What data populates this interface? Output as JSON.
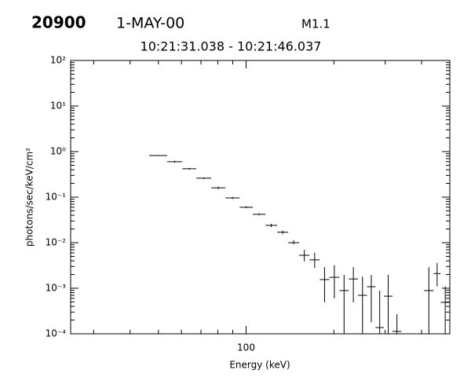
{
  "chart_data": {
    "type": "errorbar",
    "header": {
      "id": "20900",
      "date": "1-MAY-00",
      "class": "M1.1",
      "time_range": "10:21:31.038 - 10:21:46.037"
    },
    "x_label": "Energy (keV)",
    "y_label": "photons/sec/keV/cm²",
    "xscale": "log",
    "yscale": "log",
    "color": "#000000",
    "xlim": [
      25,
      500
    ],
    "ylim": [
      0.0001,
      100
    ],
    "xticks": [
      100
    ],
    "xminorticks": [
      30,
      40,
      50,
      60,
      70,
      80,
      90,
      200,
      300,
      400
    ],
    "yticks": [
      {
        "value": 100,
        "label": "10²"
      },
      {
        "value": 10,
        "label": "10¹"
      },
      {
        "value": 1,
        "label": "10⁰"
      },
      {
        "value": 0.1,
        "label": "10⁻¹"
      },
      {
        "value": 0.01,
        "label": "10⁻²"
      },
      {
        "value": 0.001,
        "label": "10⁻³"
      },
      {
        "value": 0.0001,
        "label": "10⁻⁴"
      }
    ],
    "yminorticks": [
      0.0002,
      0.0003,
      0.0004,
      0.0005,
      0.0006,
      0.0007,
      0.0008,
      0.0009,
      0.002,
      0.003,
      0.004,
      0.005,
      0.006,
      0.007,
      0.008,
      0.009,
      0.02,
      0.03,
      0.04,
      0.05,
      0.06,
      0.07,
      0.08,
      0.09,
      0.2,
      0.3,
      0.4,
      0.5,
      0.6,
      0.7,
      0.8,
      0.9,
      2,
      3,
      4,
      5,
      6,
      7,
      8,
      9,
      20,
      30,
      40,
      50,
      60,
      70,
      80,
      90
    ],
    "energy_low": [
      46.5,
      53.6,
      60.4,
      67.5,
      75.9,
      84.9,
      95.0,
      105.5,
      116.5,
      127.8,
      139.5,
      152,
      165,
      179,
      193,
      209,
      225,
      242,
      260,
      278,
      297,
      318,
      408,
      440,
      465
    ],
    "energy_high": [
      53.6,
      60.4,
      67.5,
      75.9,
      84.9,
      95.0,
      105.5,
      116.5,
      127.8,
      139.5,
      152,
      165,
      179,
      193,
      209,
      225,
      242,
      260,
      278,
      297,
      318,
      341,
      440,
      465,
      500
    ],
    "values": [
      0.82,
      0.6,
      0.42,
      0.26,
      0.16,
      0.096,
      0.06,
      0.042,
      0.024,
      0.017,
      0.01,
      0.0053,
      0.0042,
      0.00155,
      0.00174,
      0.00089,
      0.0016,
      0.0007,
      0.00108,
      0.000137,
      0.00067,
      0.000113,
      0.00089,
      0.0021,
      0.00049
    ],
    "err_low": [
      0.8,
      0.57,
      0.4,
      0.25,
      0.15,
      0.091,
      0.057,
      0.04,
      0.022,
      0.0155,
      0.0092,
      0.0039,
      0.0028,
      0.00049,
      0.0006,
      5e-05,
      0.00049,
      5e-05,
      0.00018,
      5e-05,
      5e-05,
      5e-05,
      5e-05,
      0.0011,
      5e-05
    ],
    "err_high": [
      0.84,
      0.63,
      0.44,
      0.27,
      0.17,
      0.101,
      0.063,
      0.044,
      0.026,
      0.0185,
      0.0112,
      0.007,
      0.006,
      0.0029,
      0.0032,
      0.00196,
      0.0029,
      0.0018,
      0.00196,
      0.00089,
      0.00196,
      0.00027,
      0.0029,
      0.0036,
      0.0011
    ]
  }
}
